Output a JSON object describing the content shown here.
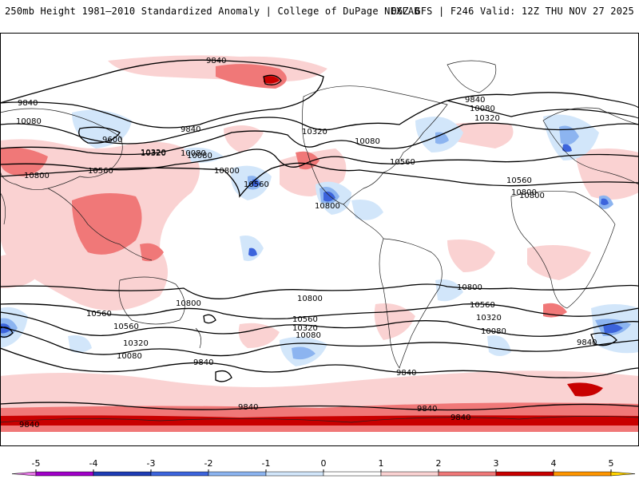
{
  "header": {
    "title_left": "250mb Height 1981–2010 Standardized Anomaly | College of DuPage NEXLAB",
    "title_right": "06Z GFS | F246 Valid: 12Z THU NOV 27 2025"
  },
  "map": {
    "projection": "equirectangular-global",
    "contour_labels": [
      {
        "id": "c1",
        "text": "9840"
      },
      {
        "id": "c2",
        "text": "9840"
      },
      {
        "id": "c3",
        "text": "10080"
      },
      {
        "id": "c4",
        "text": "9600"
      },
      {
        "id": "c5",
        "text": "9840"
      },
      {
        "id": "c6",
        "text": "10320"
      },
      {
        "id": "c7",
        "text": "10080"
      },
      {
        "id": "c8",
        "text": "10560"
      },
      {
        "id": "c9",
        "text": "10800"
      },
      {
        "id": "c10",
        "text": "10800"
      },
      {
        "id": "c11",
        "text": "10560"
      },
      {
        "id": "c12",
        "text": "10320"
      },
      {
        "id": "c13",
        "text": "10080"
      },
      {
        "id": "c14",
        "text": "10560"
      },
      {
        "id": "c15",
        "text": "10800"
      },
      {
        "id": "c16",
        "text": "9840"
      },
      {
        "id": "c17",
        "text": "10080"
      },
      {
        "id": "c18",
        "text": "10320"
      },
      {
        "id": "c19",
        "text": "10560"
      },
      {
        "id": "c20",
        "text": "10800"
      },
      {
        "id": "c21",
        "text": "10800"
      },
      {
        "id": "c22",
        "text": "10800"
      },
      {
        "id": "c23",
        "text": "10800"
      },
      {
        "id": "c24",
        "text": "10560"
      },
      {
        "id": "c25",
        "text": "10320"
      },
      {
        "id": "c26",
        "text": "10080"
      },
      {
        "id": "c27",
        "text": "9840"
      },
      {
        "id": "c28",
        "text": "10560"
      },
      {
        "id": "c29",
        "text": "10320"
      },
      {
        "id": "c30",
        "text": "10080"
      },
      {
        "id": "c31",
        "text": "9840"
      },
      {
        "id": "c32",
        "text": "10560"
      },
      {
        "id": "c33",
        "text": "10320"
      },
      {
        "id": "c34",
        "text": "10080"
      },
      {
        "id": "c35",
        "text": "9840"
      },
      {
        "id": "c36",
        "text": "9840"
      },
      {
        "id": "c37",
        "text": "9840"
      },
      {
        "id": "c38",
        "text": "9840"
      },
      {
        "id": "c39",
        "text": "9840"
      },
      {
        "id": "c40",
        "text": "10560"
      },
      {
        "id": "c41",
        "text": "10800"
      },
      {
        "id": "c42",
        "text": "10080"
      },
      {
        "id": "c43",
        "text": "10320"
      }
    ]
  },
  "colorbar": {
    "ticks": [
      "-5",
      "-4",
      "-3",
      "-2",
      "-1",
      "0",
      "1",
      "2",
      "3",
      "4",
      "5"
    ],
    "bins": [
      {
        "from": -5,
        "to": -4,
        "color": "#a000c8"
      },
      {
        "from": -4,
        "to": -3,
        "color": "#1e3cb4"
      },
      {
        "from": -3,
        "to": -2,
        "color": "#3c64dc"
      },
      {
        "from": -2,
        "to": -1,
        "color": "#8cb4f0"
      },
      {
        "from": -1,
        "to": 0,
        "color": "#d2e6fa"
      },
      {
        "from": 0,
        "to": 1,
        "color": "#ffffff"
      },
      {
        "from": 1,
        "to": 2,
        "color": "#fad2d2"
      },
      {
        "from": 2,
        "to": 3,
        "color": "#f07878"
      },
      {
        "from": 3,
        "to": 4,
        "color": "#c80000"
      },
      {
        "from": 4,
        "to": 5,
        "color": "#ff9600"
      }
    ],
    "low_end_color": "#e678e6",
    "high_end_color": "#ffd200"
  }
}
